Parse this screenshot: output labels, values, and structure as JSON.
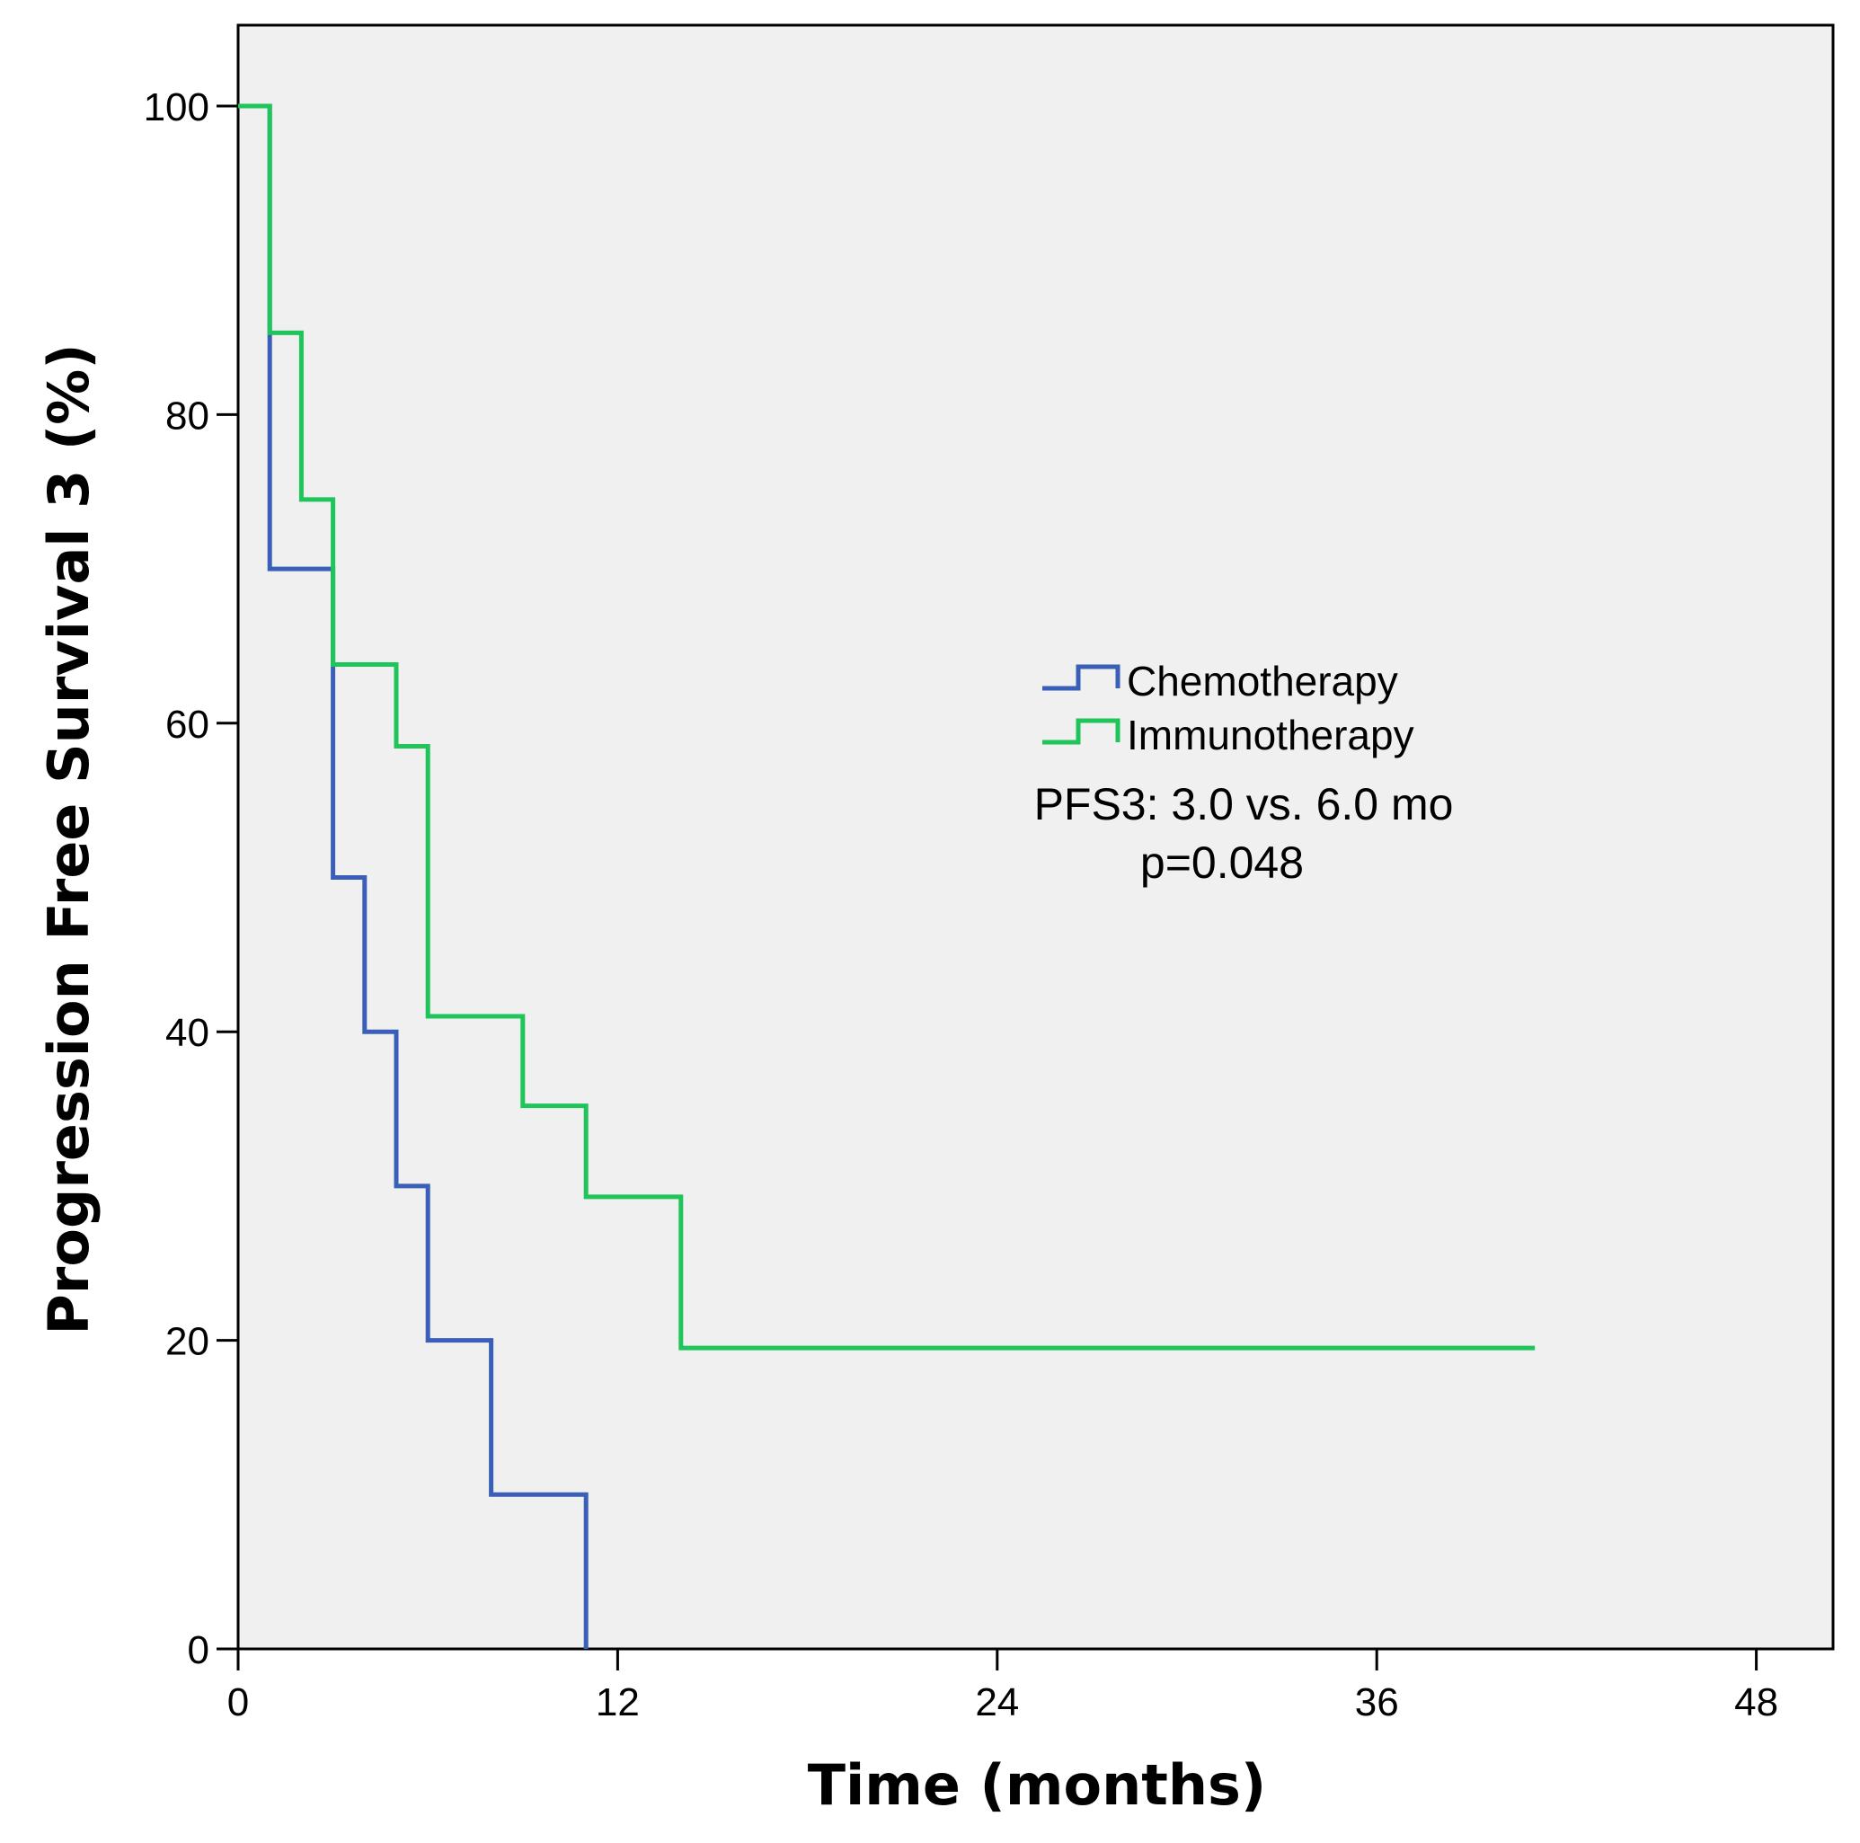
{
  "chart_data": {
    "type": "line",
    "subtype": "kaplan-meier step",
    "title": "",
    "xlabel": "Time (months)",
    "ylabel": "Progression Free Survival 3 (%)",
    "xlim": [
      0,
      51
    ],
    "ylim": [
      0,
      105
    ],
    "xticks": [
      0,
      12,
      24,
      36,
      48
    ],
    "yticks": [
      0,
      20,
      40,
      60,
      80,
      100
    ],
    "xtick_labels": [
      "0",
      "12",
      "24",
      "36",
      "48"
    ],
    "ytick_labels": [
      "0",
      "20",
      "40",
      "60",
      "80",
      "100"
    ],
    "grid": false,
    "plot_background": "#f0f0f0",
    "legend_position": "center-right",
    "series": [
      {
        "name": "Chemotherapy",
        "color": "#3a5fb8",
        "x": [
          0,
          1,
          3,
          4,
          5,
          6,
          8,
          11,
          11
        ],
        "y": [
          100,
          70,
          50,
          40,
          30,
          20,
          10,
          0,
          0
        ]
      },
      {
        "name": "Immunotherapy",
        "color": "#1fc45a",
        "x": [
          0,
          1,
          2,
          3,
          5,
          6,
          9,
          11,
          14,
          41
        ],
        "y": [
          100,
          85.3,
          74.5,
          63.8,
          58.5,
          41,
          35.2,
          29.3,
          19.5,
          19.5
        ]
      }
    ],
    "annotations": {
      "line1": "PFS3: 3.0 vs. 6.0 mo",
      "line2": "p=0.048"
    }
  }
}
